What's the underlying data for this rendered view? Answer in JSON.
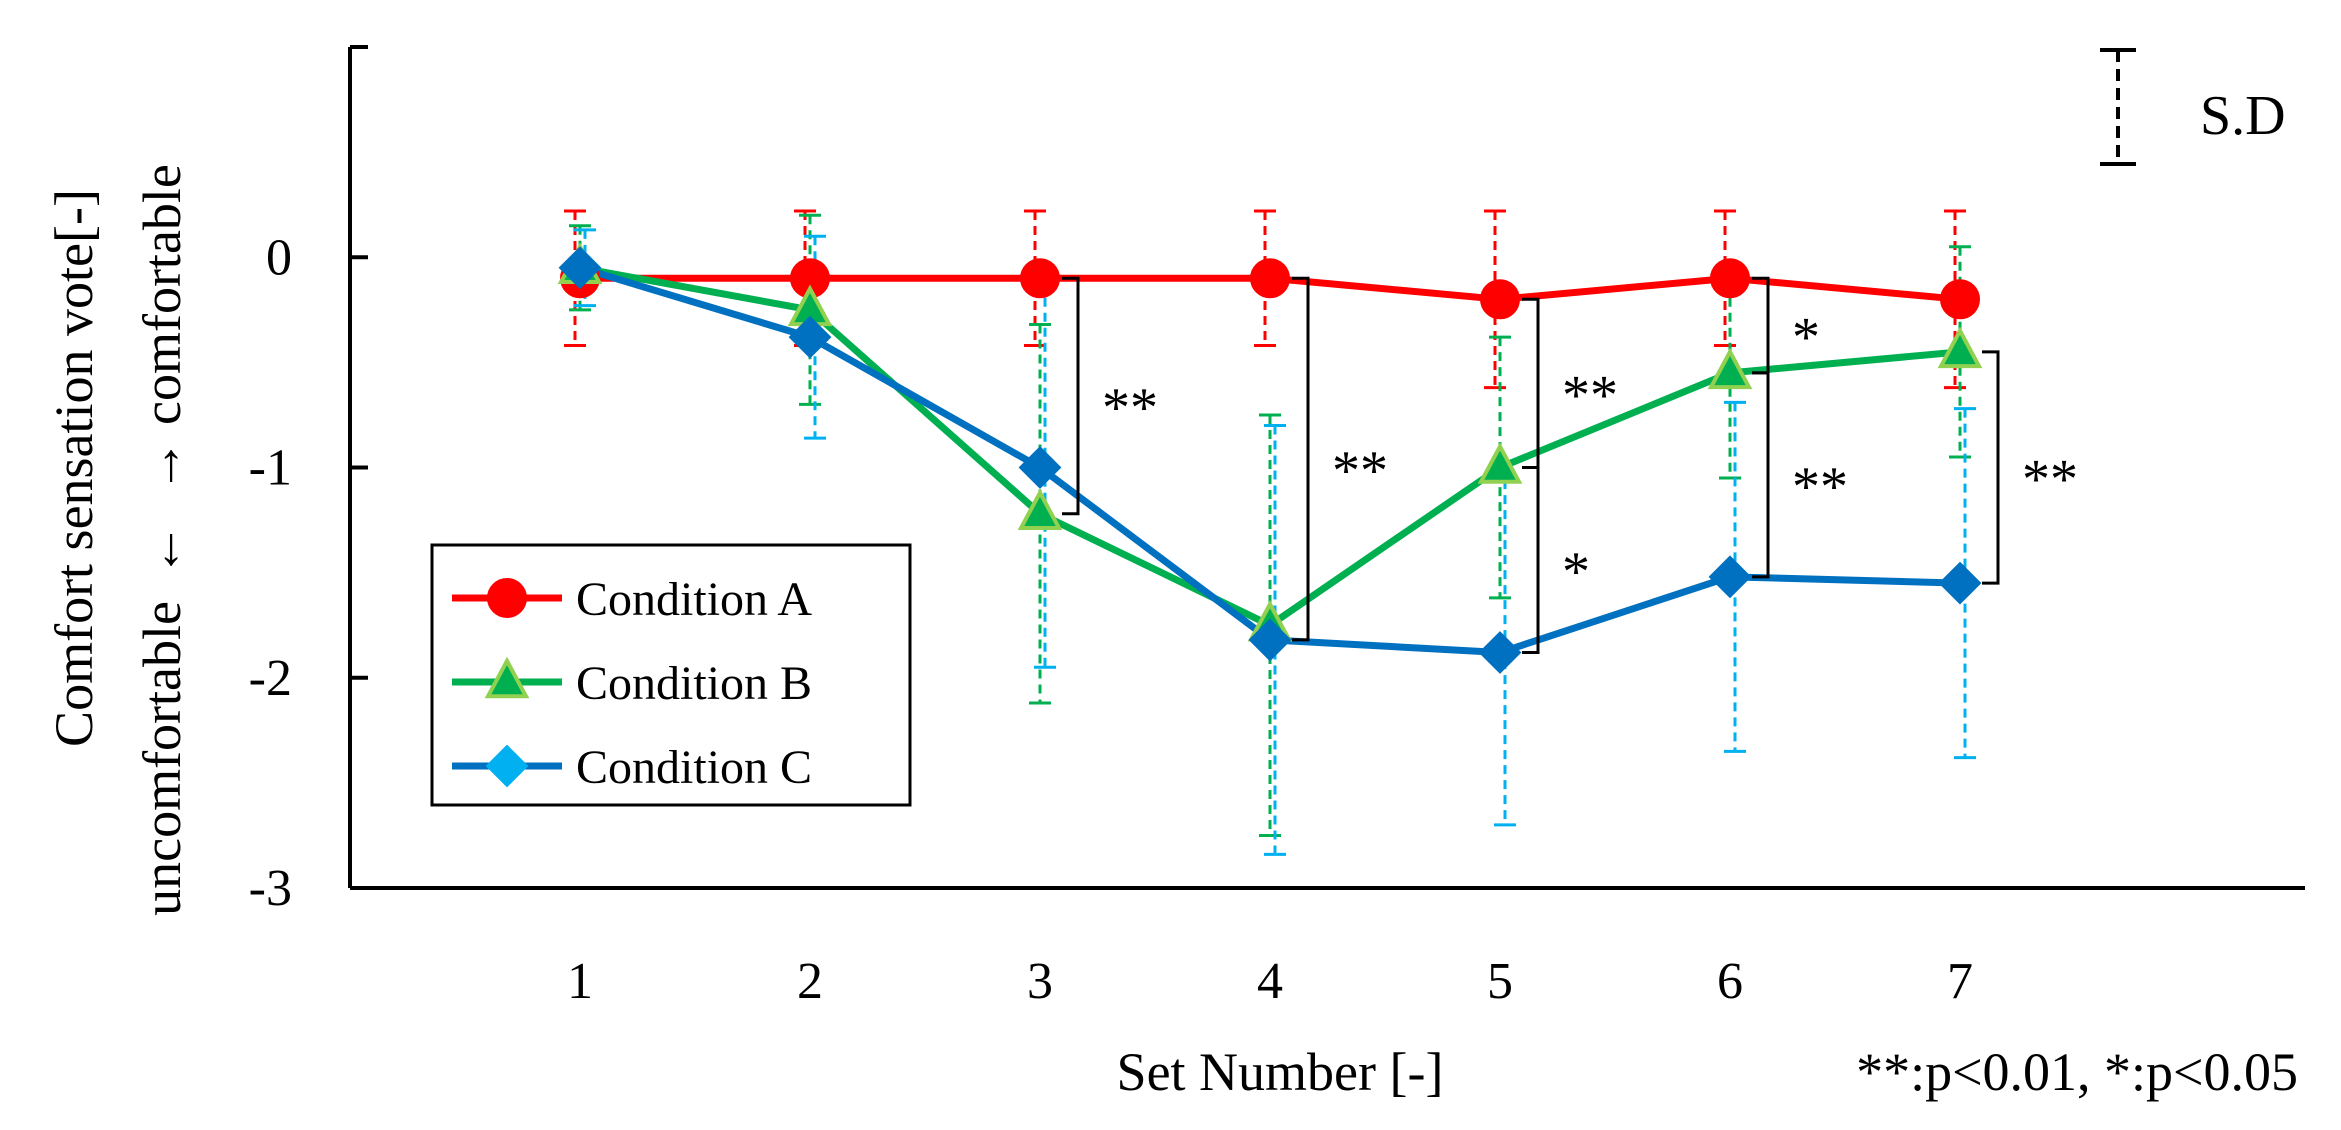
{
  "chart_data": {
    "type": "line",
    "title": "",
    "xlabel": "Set Number [-]",
    "ylabel_line1": "Comfort  sensation  vote[-]",
    "ylabel_line2_left": "uncomfortable",
    "ylabel_arrow_left": "←",
    "ylabel_arrow_right": "→",
    "ylabel_line2_right": "comfortable",
    "x": [
      1,
      2,
      3,
      4,
      5,
      6,
      7
    ],
    "xlim": [
      0,
      8.5
    ],
    "ylim": [
      -3,
      1
    ],
    "yticks": [
      0,
      -1,
      -2,
      -3
    ],
    "ytick_labels": [
      "0",
      "-1",
      "-2",
      "-3"
    ],
    "xtick_labels": [
      "1",
      "2",
      "3",
      "4",
      "5",
      "6",
      "7"
    ],
    "series": [
      {
        "name": "Condition A",
        "color": "#ff0000",
        "marker_fill": "#ff0000",
        "marker": "circle",
        "values": [
          -0.1,
          -0.1,
          -0.1,
          -0.1,
          -0.2,
          -0.1,
          -0.2
        ],
        "sd": [
          0.32,
          0.32,
          0.32,
          0.32,
          0.42,
          0.32,
          0.42
        ]
      },
      {
        "name": "Condition B",
        "color": "#00b050",
        "marker_fill": "#00b050",
        "marker_edge": "#92d050",
        "marker": "triangle",
        "values": [
          -0.05,
          -0.25,
          -1.22,
          -1.75,
          -1.0,
          -0.55,
          -0.45
        ],
        "sd": [
          0.2,
          0.45,
          0.9,
          1.0,
          0.62,
          0.5,
          0.5
        ]
      },
      {
        "name": "Condition C",
        "color": "#0070c0",
        "marker_fill": "#0070c0",
        "legend_marker_fill": "#00b0f0",
        "errorbar_color": "#00b0f0",
        "marker": "diamond",
        "values": [
          -0.05,
          -0.38,
          -1.0,
          -1.82,
          -1.88,
          -1.52,
          -1.55
        ],
        "sd": [
          0.18,
          0.48,
          0.95,
          1.02,
          0.82,
          0.83,
          0.83
        ]
      }
    ],
    "significance": [
      {
        "x": 3,
        "from": "Condition A",
        "to": "Condition B",
        "label": "**"
      },
      {
        "x": 4,
        "from": "Condition A",
        "to": "Condition C",
        "label": "**"
      },
      {
        "x": 5,
        "from": "Condition A",
        "to": "Condition B",
        "label": "**"
      },
      {
        "x": 5,
        "from": "Condition B",
        "to": "Condition C",
        "label": "*"
      },
      {
        "x": 6,
        "from": "Condition A",
        "to": "Condition B",
        "label": "*"
      },
      {
        "x": 6,
        "from": "Condition B",
        "to": "Condition C",
        "label": "**"
      },
      {
        "x": 7,
        "from": "Condition B",
        "to": "Condition C",
        "label": "**"
      }
    ],
    "sd_legend_label": "S.D",
    "footnote": "**:p<0.01,  *:p<0.05",
    "legend_position": "bottom-left",
    "grid": false
  }
}
